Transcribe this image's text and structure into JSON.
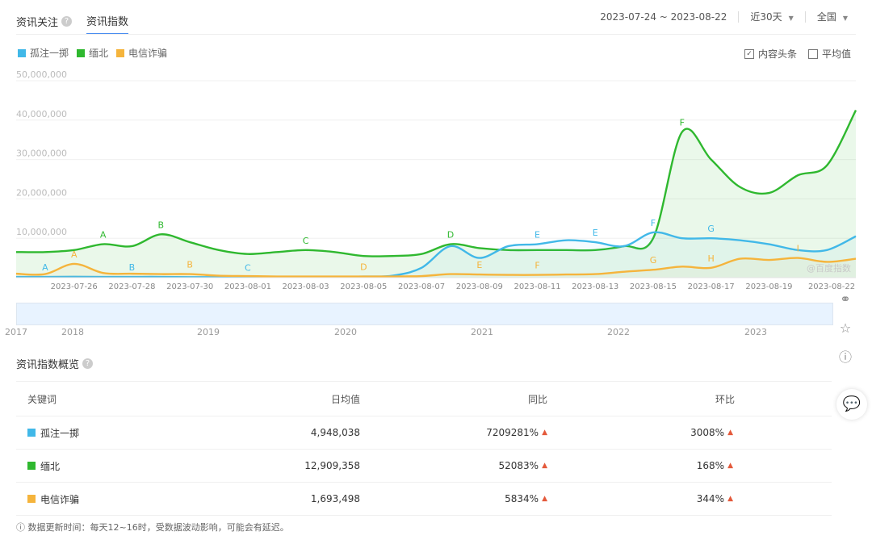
{
  "tabs": [
    {
      "label": "资讯关注",
      "active": false
    },
    {
      "label": "资讯指数",
      "active": true
    }
  ],
  "date_range": "2023-07-24 ~ 2023-08-22",
  "period_select": "近30天",
  "region_select": "全国",
  "checks": [
    {
      "label": "内容头条",
      "checked": true
    },
    {
      "label": "平均值",
      "checked": false
    }
  ],
  "watermark": "@百度指数",
  "colors": {
    "s1": "#41b8e8",
    "s2": "#2fb82f",
    "s3": "#f5b43c"
  },
  "chart_data": {
    "type": "area",
    "title": "",
    "x": [
      "2023-07-24",
      "2023-07-25",
      "2023-07-26",
      "2023-07-27",
      "2023-07-28",
      "2023-07-29",
      "2023-07-30",
      "2023-07-31",
      "2023-08-01",
      "2023-08-02",
      "2023-08-03",
      "2023-08-04",
      "2023-08-05",
      "2023-08-06",
      "2023-08-07",
      "2023-08-08",
      "2023-08-09",
      "2023-08-10",
      "2023-08-11",
      "2023-08-12",
      "2023-08-13",
      "2023-08-14",
      "2023-08-15",
      "2023-08-16",
      "2023-08-17",
      "2023-08-18",
      "2023-08-19",
      "2023-08-20",
      "2023-08-21",
      "2023-08-22"
    ],
    "xticks": [
      "2023-07-26",
      "2023-07-28",
      "2023-07-30",
      "2023-08-01",
      "2023-08-03",
      "2023-08-05",
      "2023-08-07",
      "2023-08-09",
      "2023-08-11",
      "2023-08-13",
      "2023-08-15",
      "2023-08-17",
      "2023-08-19",
      "2023-08-22"
    ],
    "yticks": [
      "10,000,000",
      "20,000,000",
      "30,000,000",
      "40,000,000",
      "50,000,000"
    ],
    "ylim": [
      0,
      50000000
    ],
    "series": [
      {
        "name": "孤注一掷",
        "color": "#41b8e8",
        "values": [
          200000,
          200000,
          250000,
          200000,
          200000,
          200000,
          150000,
          150000,
          150000,
          150000,
          200000,
          250000,
          300000,
          500000,
          2500000,
          8000000,
          5000000,
          8000000,
          8500000,
          9500000,
          9000000,
          8000000,
          11500000,
          10000000,
          10000000,
          9500000,
          8500000,
          7000000,
          7000000,
          10500000
        ]
      },
      {
        "name": "缅北",
        "color": "#2fb82f",
        "values": [
          6500000,
          6500000,
          7000000,
          8500000,
          8000000,
          11000000,
          9000000,
          7000000,
          6000000,
          6500000,
          7000000,
          6500000,
          5500000,
          5500000,
          6000000,
          8500000,
          7500000,
          7000000,
          7000000,
          7000000,
          7000000,
          8000000,
          10000000,
          37000000,
          30000000,
          23000000,
          21500000,
          26000000,
          28500000,
          42500000
        ]
      },
      {
        "name": "电信诈骗",
        "color": "#f5b43c",
        "values": [
          1000000,
          900000,
          3500000,
          1200000,
          1000000,
          900000,
          900000,
          500000,
          400000,
          300000,
          300000,
          300000,
          300000,
          300000,
          400000,
          900000,
          800000,
          700000,
          700000,
          800000,
          900000,
          1500000,
          2000000,
          2800000,
          2500000,
          4800000,
          4500000,
          5000000,
          4000000,
          4800000
        ]
      }
    ],
    "annotations": [
      {
        "label": "A",
        "series": 1,
        "x": "2023-07-27"
      },
      {
        "label": "B",
        "series": 1,
        "x": "2023-07-29"
      },
      {
        "label": "C",
        "series": 1,
        "x": "2023-08-03"
      },
      {
        "label": "D",
        "series": 1,
        "x": "2023-08-08"
      },
      {
        "label": "F",
        "series": 1,
        "x": "2023-08-16"
      },
      {
        "label": "A",
        "series": 0,
        "x": "2023-07-25"
      },
      {
        "label": "B",
        "series": 0,
        "x": "2023-07-28"
      },
      {
        "label": "C",
        "series": 0,
        "x": "2023-08-01"
      },
      {
        "label": "E",
        "series": 0,
        "x": "2023-08-11"
      },
      {
        "label": "E",
        "series": 0,
        "x": "2023-08-13"
      },
      {
        "label": "F",
        "series": 0,
        "x": "2023-08-15"
      },
      {
        "label": "G",
        "series": 0,
        "x": "2023-08-17"
      },
      {
        "label": "A",
        "series": 2,
        "x": "2023-07-26"
      },
      {
        "label": "B",
        "series": 2,
        "x": "2023-07-30"
      },
      {
        "label": "D",
        "series": 2,
        "x": "2023-08-05"
      },
      {
        "label": "E",
        "series": 2,
        "x": "2023-08-09"
      },
      {
        "label": "F",
        "series": 2,
        "x": "2023-08-11"
      },
      {
        "label": "G",
        "series": 2,
        "x": "2023-08-15"
      },
      {
        "label": "H",
        "series": 2,
        "x": "2023-08-17"
      },
      {
        "label": "I",
        "series": 2,
        "x": "2023-08-20"
      }
    ]
  },
  "timeline_years": [
    "2017",
    "2018",
    "2019",
    "2020",
    "2021",
    "2022",
    "2023"
  ],
  "overview": {
    "title": "资讯指数概览",
    "headers": [
      "关键词",
      "日均值",
      "同比",
      "环比"
    ],
    "rows": [
      {
        "keyword": "孤注一掷",
        "color": "#41b8e8",
        "avg": "4,948,038",
        "yoy": "7209281%",
        "mom": "3008%"
      },
      {
        "keyword": "缅北",
        "color": "#2fb82f",
        "avg": "12,909,358",
        "yoy": "52083%",
        "mom": "168%"
      },
      {
        "keyword": "电信诈骗",
        "color": "#f5b43c",
        "avg": "1,693,498",
        "yoy": "5834%",
        "mom": "344%"
      }
    ]
  },
  "footnote": "数据更新时间：每天12~16时，受数据波动影响，可能会有延迟。"
}
